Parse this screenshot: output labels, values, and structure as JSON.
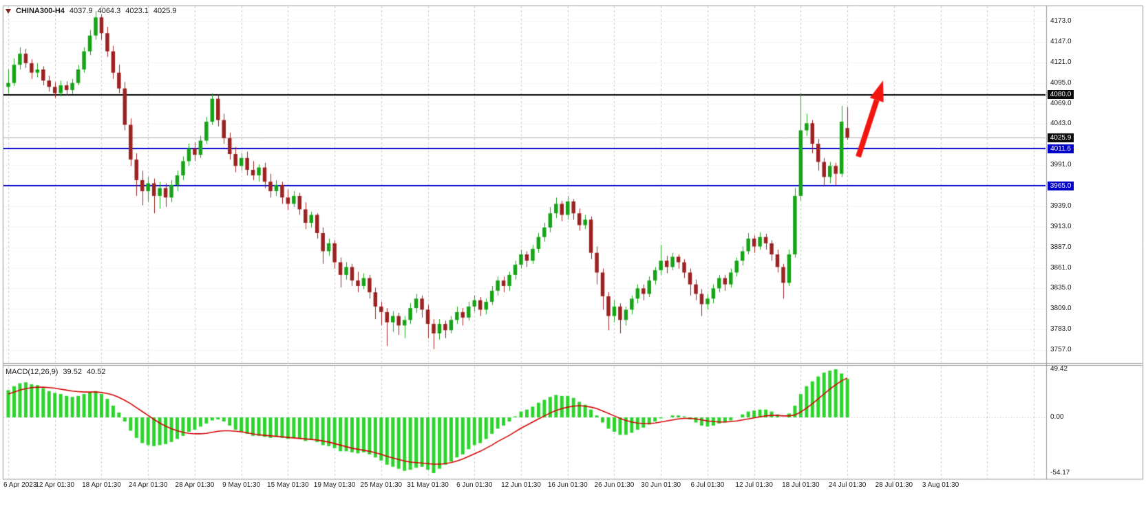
{
  "quote_bar": {
    "symbol": "CHINA300-H4",
    "open": "4037.9",
    "high": "4064.3",
    "low": "4023.1",
    "close": "4025.9"
  },
  "colors": {
    "candle_up": "#17a317",
    "candle_down": "#9c2121",
    "macd_hist": "#2ed42e",
    "macd_signal": "#d40000",
    "grid": "#c9c9c9",
    "grid_h": "#d4d4d4",
    "frame": "#9b9b9b",
    "hline_blue": "#0000c8",
    "hline_black": "#000000",
    "bid_line": "#a8a8a8",
    "arrow": "#f2150f",
    "axis_text": "#1a1a1a",
    "badge_black": "#0a0a0a",
    "badge_blue": "#0000c8"
  },
  "chart_data": {
    "type": "candlestick",
    "symbol": "CHINA300-H4",
    "timeframe": "H4",
    "x_labels": [
      "6 Apr 2023",
      "12 Apr 01:30",
      "18 Apr 01:30",
      "24 Apr 01:30",
      "28 Apr 01:30",
      "9 May 01:30",
      "15 May 01:30",
      "19 May 01:30",
      "25 May 01:30",
      "31 May 01:30",
      "6 Jun 01:30",
      "12 Jun 01:30",
      "16 Jun 01:30",
      "26 Jun 01:30",
      "30 Jun 01:30",
      "6 Jul 01:30",
      "12 Jul 01:30",
      "18 Jul 01:30",
      "24 Jul 01:30",
      "28 Jul 01:30",
      "3 Aug 01:30"
    ],
    "candles_per_x_label": 8,
    "price_axis": {
      "ticks": [
        "4173.0",
        "4147.0",
        "4121.0",
        "4095.0",
        "4069.0",
        "4043.0",
        "3991.0",
        "3939.0",
        "3913.0",
        "3887.0",
        "3861.0",
        "3835.0",
        "3809.0",
        "3783.0",
        "3757.0"
      ],
      "grid_min": 3757,
      "grid_max": 4173,
      "grid_step": 26
    },
    "badges": [
      {
        "label": "4080.0",
        "price": 4080.0,
        "bg": "#0a0a0a"
      },
      {
        "label": "4025.9",
        "price": 4025.9,
        "bg": "#0a0a0a"
      },
      {
        "label": "4011.6",
        "price": 4011.6,
        "bg": "#0000c8"
      },
      {
        "label": "3965.0",
        "price": 3965.0,
        "bg": "#0000c8"
      }
    ],
    "hlines": [
      {
        "price": 4080.0,
        "color": "#000000",
        "width": 2
      },
      {
        "price": 4011.6,
        "color": "#0000c8",
        "width": 2
      },
      {
        "price": 3965.0,
        "color": "#0000c8",
        "width": 2
      }
    ],
    "bid_price": 4025.9,
    "candles": [
      [
        4090,
        4112,
        4082,
        4095
      ],
      [
        4095,
        4126,
        4091,
        4118
      ],
      [
        4118,
        4140,
        4112,
        4132
      ],
      [
        4132,
        4138,
        4114,
        4120
      ],
      [
        4120,
        4125,
        4100,
        4108
      ],
      [
        4108,
        4120,
        4102,
        4112
      ],
      [
        4112,
        4116,
        4092,
        4098
      ],
      [
        4098,
        4104,
        4084,
        4090
      ],
      [
        4090,
        4096,
        4076,
        4082
      ],
      [
        4082,
        4098,
        4078,
        4092
      ],
      [
        4092,
        4097,
        4079,
        4086
      ],
      [
        4086,
        4100,
        4081,
        4095
      ],
      [
        4095,
        4118,
        4092,
        4112
      ],
      [
        4112,
        4140,
        4108,
        4135
      ],
      [
        4135,
        4162,
        4130,
        4155
      ],
      [
        4155,
        4186,
        4150,
        4178
      ],
      [
        4178,
        4182,
        4150,
        4158
      ],
      [
        4158,
        4166,
        4128,
        4135
      ],
      [
        4135,
        4142,
        4100,
        4108
      ],
      [
        4108,
        4118,
        4082,
        4088
      ],
      [
        4088,
        4096,
        4035,
        4042
      ],
      [
        4042,
        4050,
        3990,
        3998
      ],
      [
        3998,
        4006,
        3952,
        3972
      ],
      [
        3972,
        3984,
        3940,
        3958
      ],
      [
        3958,
        3976,
        3944,
        3968
      ],
      [
        3968,
        3974,
        3930,
        3952
      ],
      [
        3952,
        3970,
        3936,
        3962
      ],
      [
        3962,
        3968,
        3938,
        3950
      ],
      [
        3950,
        3972,
        3944,
        3966
      ],
      [
        3966,
        3984,
        3958,
        3978
      ],
      [
        3978,
        4002,
        3972,
        3996
      ],
      [
        3996,
        4018,
        3990,
        4012
      ],
      [
        4012,
        4020,
        3996,
        4004
      ],
      [
        4004,
        4028,
        4000,
        4022
      ],
      [
        4022,
        4052,
        4018,
        4046
      ],
      [
        4046,
        4082,
        4042,
        4075
      ],
      [
        4075,
        4080,
        4040,
        4048
      ],
      [
        4048,
        4056,
        4018,
        4025
      ],
      [
        4025,
        4032,
        3998,
        4005
      ],
      [
        4005,
        4014,
        3982,
        3990
      ],
      [
        3990,
        4006,
        3984,
        4000
      ],
      [
        4000,
        4008,
        3978,
        3985
      ],
      [
        3985,
        3996,
        3972,
        3978
      ],
      [
        3978,
        3992,
        3970,
        3988
      ],
      [
        3988,
        3994,
        3962,
        3970
      ],
      [
        3970,
        3980,
        3950,
        3958
      ],
      [
        3958,
        3972,
        3952,
        3966
      ],
      [
        3966,
        3970,
        3942,
        3950
      ],
      [
        3950,
        3960,
        3934,
        3942
      ],
      [
        3942,
        3958,
        3938,
        3952
      ],
      [
        3952,
        3956,
        3928,
        3935
      ],
      [
        3935,
        3944,
        3910,
        3918
      ],
      [
        3918,
        3932,
        3912,
        3928
      ],
      [
        3928,
        3930,
        3898,
        3905
      ],
      [
        3905,
        3912,
        3866,
        3882
      ],
      [
        3882,
        3898,
        3876,
        3892
      ],
      [
        3892,
        3896,
        3860,
        3868
      ],
      [
        3868,
        3874,
        3836,
        3852
      ],
      [
        3852,
        3868,
        3846,
        3862
      ],
      [
        3862,
        3866,
        3838,
        3845
      ],
      [
        3845,
        3856,
        3830,
        3838
      ],
      [
        3838,
        3854,
        3834,
        3848
      ],
      [
        3848,
        3852,
        3822,
        3830
      ],
      [
        3830,
        3836,
        3796,
        3812
      ],
      [
        3812,
        3818,
        3788,
        3805
      ],
      [
        3805,
        3810,
        3762,
        3792
      ],
      [
        3792,
        3806,
        3780,
        3800
      ],
      [
        3800,
        3804,
        3776,
        3788
      ],
      [
        3788,
        3800,
        3772,
        3795
      ],
      [
        3795,
        3816,
        3790,
        3810
      ],
      [
        3810,
        3828,
        3804,
        3822
      ],
      [
        3822,
        3826,
        3798,
        3808
      ],
      [
        3808,
        3814,
        3772,
        3790
      ],
      [
        3790,
        3796,
        3758,
        3778
      ],
      [
        3778,
        3796,
        3770,
        3790
      ],
      [
        3790,
        3794,
        3772,
        3782
      ],
      [
        3782,
        3800,
        3778,
        3795
      ],
      [
        3795,
        3812,
        3790,
        3805
      ],
      [
        3805,
        3810,
        3788,
        3798
      ],
      [
        3798,
        3818,
        3794,
        3812
      ],
      [
        3812,
        3826,
        3806,
        3820
      ],
      [
        3820,
        3824,
        3800,
        3808
      ],
      [
        3808,
        3822,
        3802,
        3818
      ],
      [
        3818,
        3838,
        3814,
        3832
      ],
      [
        3832,
        3850,
        3826,
        3845
      ],
      [
        3845,
        3850,
        3830,
        3838
      ],
      [
        3838,
        3856,
        3832,
        3852
      ],
      [
        3852,
        3870,
        3846,
        3865
      ],
      [
        3865,
        3884,
        3860,
        3878
      ],
      [
        3878,
        3882,
        3862,
        3870
      ],
      [
        3870,
        3890,
        3866,
        3885
      ],
      [
        3885,
        3905,
        3880,
        3900
      ],
      [
        3900,
        3918,
        3894,
        3912
      ],
      [
        3912,
        3938,
        3906,
        3930
      ],
      [
        3930,
        3950,
        3924,
        3942
      ],
      [
        3942,
        3946,
        3920,
        3928
      ],
      [
        3928,
        3952,
        3922,
        3945
      ],
      [
        3945,
        3948,
        3922,
        3930
      ],
      [
        3930,
        3936,
        3908,
        3915
      ],
      [
        3915,
        3928,
        3910,
        3922
      ],
      [
        3922,
        3926,
        3872,
        3880
      ],
      [
        3880,
        3888,
        3840,
        3855
      ],
      [
        3855,
        3860,
        3808,
        3825
      ],
      [
        3825,
        3830,
        3782,
        3800
      ],
      [
        3800,
        3820,
        3792,
        3812
      ],
      [
        3812,
        3816,
        3778,
        3795
      ],
      [
        3795,
        3812,
        3788,
        3808
      ],
      [
        3808,
        3826,
        3802,
        3822
      ],
      [
        3822,
        3840,
        3816,
        3835
      ],
      [
        3835,
        3840,
        3820,
        3828
      ],
      [
        3828,
        3850,
        3824,
        3845
      ],
      [
        3845,
        3862,
        3840,
        3858
      ],
      [
        3858,
        3890,
        3852,
        3870
      ],
      [
        3870,
        3876,
        3854,
        3862
      ],
      [
        3862,
        3880,
        3858,
        3875
      ],
      [
        3875,
        3878,
        3860,
        3868
      ],
      [
        3868,
        3872,
        3848,
        3855
      ],
      [
        3855,
        3860,
        3826,
        3840
      ],
      [
        3840,
        3846,
        3820,
        3828
      ],
      [
        3828,
        3834,
        3800,
        3815
      ],
      [
        3815,
        3828,
        3808,
        3822
      ],
      [
        3822,
        3840,
        3816,
        3835
      ],
      [
        3835,
        3852,
        3830,
        3848
      ],
      [
        3848,
        3852,
        3832,
        3840
      ],
      [
        3840,
        3860,
        3836,
        3855
      ],
      [
        3855,
        3874,
        3850,
        3870
      ],
      [
        3870,
        3888,
        3864,
        3882
      ],
      [
        3882,
        3905,
        3878,
        3898
      ],
      [
        3898,
        3902,
        3880,
        3888
      ],
      [
        3888,
        3906,
        3884,
        3900
      ],
      [
        3900,
        3904,
        3884,
        3892
      ],
      [
        3892,
        3896,
        3870,
        3878
      ],
      [
        3878,
        3884,
        3855,
        3862
      ],
      [
        3862,
        3866,
        3822,
        3842
      ],
      [
        3842,
        3884,
        3838,
        3878
      ],
      [
        3878,
        3962,
        3874,
        3952
      ],
      [
        3952,
        4082,
        3946,
        4035
      ],
      [
        4035,
        4056,
        4028,
        4044
      ],
      [
        4044,
        4048,
        4006,
        4018
      ],
      [
        4018,
        4024,
        3984,
        3995
      ],
      [
        3995,
        4000,
        3964,
        3976
      ],
      [
        3976,
        3995,
        3968,
        3990
      ],
      [
        3990,
        3994,
        3966,
        3980
      ],
      [
        3980,
        4066,
        3976,
        4046
      ],
      [
        4037.9,
        4064.3,
        4023.1,
        4025.9
      ]
    ],
    "macd": {
      "label": "MACD(12,26,9)",
      "macd_value": "39.52",
      "signal_value": "40.52",
      "axis_labels": [
        "49.42",
        "0.00",
        "-54.17"
      ],
      "axis_values": [
        49.42,
        0,
        -54.17
      ],
      "histogram": [
        28,
        32,
        35,
        36,
        34,
        33,
        30,
        27,
        25,
        24,
        22,
        21,
        22,
        24,
        26,
        27,
        24,
        19,
        12,
        5,
        -4,
        -13,
        -20,
        -25,
        -27,
        -28,
        -27,
        -26,
        -24,
        -21,
        -18,
        -14,
        -12,
        -9,
        -6,
        -3,
        -2,
        -4,
        -8,
        -12,
        -14,
        -16,
        -18,
        -18,
        -19,
        -20,
        -19,
        -20,
        -21,
        -20,
        -21,
        -23,
        -22,
        -24,
        -27,
        -28,
        -30,
        -33,
        -33,
        -34,
        -35,
        -34,
        -36,
        -39,
        -42,
        -46,
        -48,
        -50,
        -52,
        -51,
        -49,
        -48,
        -51,
        -54.17,
        -50,
        -46,
        -43,
        -39,
        -36,
        -31,
        -27,
        -25,
        -21,
        -16,
        -11,
        -8,
        -4,
        1,
        6,
        8,
        11,
        15,
        18,
        21,
        23,
        22,
        22,
        20,
        16,
        13,
        8,
        2,
        -5,
        -11,
        -14,
        -17,
        -17,
        -15,
        -12,
        -10,
        -7,
        -4,
        -1,
        0,
        2,
        2,
        1,
        -2,
        -5,
        -8,
        -9,
        -8,
        -6,
        -5,
        -3,
        0,
        3,
        6,
        7,
        8,
        8,
        6,
        3,
        0,
        4,
        12,
        24,
        32,
        37,
        42,
        46,
        48,
        49.42,
        45,
        39.52
      ],
      "signal": [
        24,
        26,
        28,
        29.5,
        30.5,
        31,
        31,
        30.5,
        30,
        29,
        28,
        27,
        26.5,
        26,
        26,
        26,
        25.5,
        24.5,
        23,
        20.5,
        17.5,
        14,
        10,
        6,
        2,
        -2,
        -5.5,
        -8.5,
        -11,
        -13,
        -14.5,
        -15.5,
        -16,
        -16,
        -15.5,
        -14.5,
        -13.5,
        -13,
        -13,
        -13.5,
        -14,
        -15,
        -16,
        -17,
        -17.5,
        -18,
        -18.5,
        -19,
        -19.5,
        -20,
        -20.5,
        -21,
        -21.5,
        -22,
        -23,
        -24,
        -25.5,
        -27,
        -28.5,
        -30,
        -31,
        -32,
        -33,
        -34.5,
        -36,
        -38,
        -39.5,
        -41,
        -42.5,
        -43.5,
        -44,
        -44.5,
        -45,
        -45.5,
        -45.5,
        -45,
        -44,
        -42.5,
        -40.5,
        -38,
        -35.5,
        -33,
        -30,
        -27,
        -23.5,
        -20.5,
        -17.5,
        -14,
        -10.5,
        -7.5,
        -4.5,
        -1.5,
        1.5,
        4.5,
        7,
        9,
        10.5,
        11.5,
        12,
        11.5,
        10.5,
        9,
        6.5,
        4,
        1.5,
        -1,
        -3,
        -4.5,
        -5.5,
        -6,
        -6,
        -5.5,
        -4.5,
        -3.5,
        -2.5,
        -1.5,
        -1,
        -1,
        -1.5,
        -2.5,
        -3.5,
        -4,
        -4.5,
        -4.5,
        -4,
        -3.5,
        -2.5,
        -1.5,
        -0.5,
        0.5,
        1.5,
        2,
        2,
        1.5,
        1.5,
        2.5,
        5.5,
        9.5,
        14,
        19,
        24,
        29,
        33.5,
        37.5,
        40.52
      ]
    },
    "arrow": {
      "tail": [
        1247,
        228
      ],
      "tip": [
        1283,
        117
      ]
    }
  }
}
